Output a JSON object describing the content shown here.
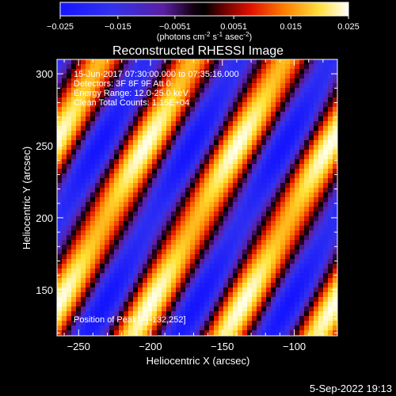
{
  "chart_data": {
    "type": "heatmap",
    "title": "Reconstructed RHESSI Image",
    "colorbar": {
      "ticks": [
        "-0.025",
        "-0.015",
        "-0.0051",
        "0.0051",
        "0.015",
        "0.025"
      ],
      "range": [
        -0.025,
        0.025
      ],
      "unit_prefix": "(photons cm",
      "unit_sup1": "-2",
      "unit_mid1": " s",
      "unit_sup2": "-1",
      "unit_mid2": " asec",
      "unit_sup3": "-2",
      "unit_suffix": ")"
    },
    "xlabel": "Heliocentric X (arcsec)",
    "ylabel": "Heliocentric Y (arcsec)",
    "xlim": [
      -265,
      -70
    ],
    "ylim": [
      118,
      310
    ],
    "xticks": [
      -250,
      -200,
      -150,
      -100
    ],
    "yticks": [
      150,
      200,
      250,
      300
    ],
    "xtick_labels": [
      "−250",
      "−200",
      "−150",
      "−100"
    ],
    "ytick_labels": [
      "150",
      "200",
      "250",
      "300"
    ],
    "annotations": {
      "line1": "15-Jun-2017 07:30:00.000 to 07:35:16.000",
      "line2": "Detectors: 3F 8F 9F  Att 0",
      "line3": "Energy Range: 12.0-25.0 keV",
      "line4": "Clean    Total Counts: 1.15E+04",
      "peak": "Position of Peak = [-132,252]"
    },
    "stripes": {
      "period_arcsec": 64,
      "tilt_per_y": 0.55,
      "phase_x": -253,
      "phase_y": 160
    },
    "colors": {
      "background": "#000000",
      "text": "#ffffff"
    }
  },
  "footer": {
    "date": "5-Sep-2022 19:13"
  }
}
